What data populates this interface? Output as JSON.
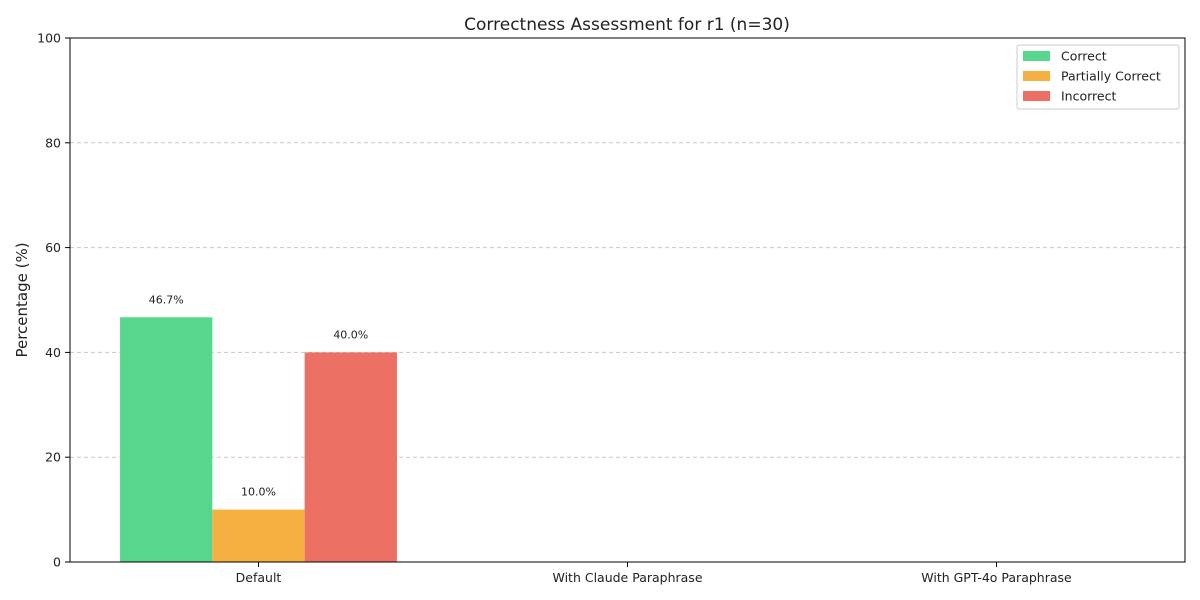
{
  "chart_data": {
    "type": "bar",
    "title": "Correctness Assessment for r1 (n=30)",
    "xlabel": "",
    "ylabel": "Percentage (%)",
    "ylim": [
      0,
      100
    ],
    "yticks": [
      0,
      20,
      40,
      60,
      80,
      100
    ],
    "grid": "horizontal dashed",
    "legend_position": "top-right",
    "categories": [
      "Default",
      "With Claude Paraphrase",
      "With GPT-4o Paraphrase"
    ],
    "series": [
      {
        "name": "Correct",
        "color": "#57d68d",
        "values": [
          46.7,
          0,
          0
        ],
        "labels": [
          "46.7%",
          null,
          null
        ]
      },
      {
        "name": "Partially Correct",
        "color": "#f5b041",
        "values": [
          10.0,
          0,
          0
        ],
        "labels": [
          "10.0%",
          null,
          null
        ]
      },
      {
        "name": "Incorrect",
        "color": "#ec7063",
        "values": [
          40.0,
          0,
          0
        ],
        "labels": [
          "40.0%",
          null,
          null
        ]
      }
    ]
  }
}
